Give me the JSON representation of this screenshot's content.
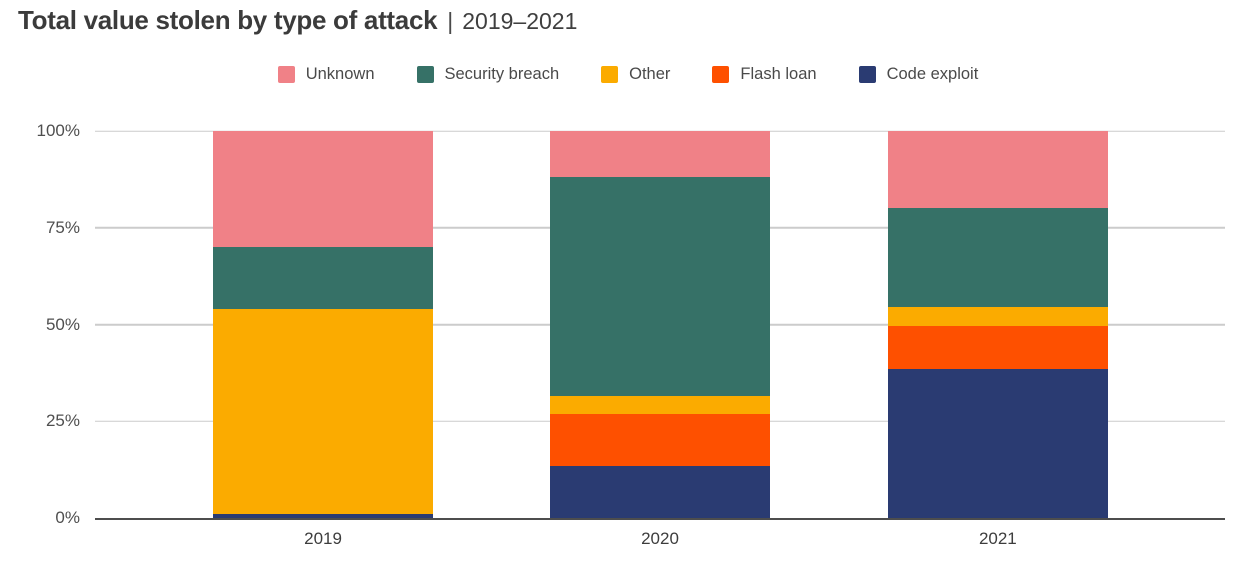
{
  "header": {
    "title": "Total value stolen by type of attack",
    "separator": "|",
    "period": "2019–2021"
  },
  "colors": {
    "unknown": "#F08187",
    "security_breach": "#367167",
    "other": "#FBAB00",
    "flash_loan": "#FE5000",
    "code_exploit": "#2A3B72",
    "gridline": "#CCCCCC",
    "axis_line": "#4D4D4D",
    "title_text": "#3B3B3B",
    "tick_text": "#4F4F4F"
  },
  "chart_data": {
    "type": "bar",
    "stacked": true,
    "unit": "%",
    "title": "Total value stolen by type of attack",
    "subtitle": "2019–2021",
    "categories": [
      "2019",
      "2020",
      "2021"
    ],
    "series": [
      {
        "name": "Code exploit",
        "color": "#2A3B72",
        "values": [
          1,
          13.5,
          38.5
        ]
      },
      {
        "name": "Flash loan",
        "color": "#FE5000",
        "values": [
          0,
          13.5,
          11
        ]
      },
      {
        "name": "Other",
        "color": "#FBAB00",
        "values": [
          53,
          4.5,
          5
        ]
      },
      {
        "name": "Security breach",
        "color": "#367167",
        "values": [
          16,
          56.5,
          25.5
        ]
      },
      {
        "name": "Unknown",
        "color": "#F08187",
        "values": [
          30,
          12,
          20
        ]
      }
    ],
    "legend_order": [
      "Unknown",
      "Security breach",
      "Other",
      "Flash loan",
      "Code exploit"
    ],
    "legend_position": "top",
    "xlabel": "",
    "ylabel": "",
    "ylim": [
      0,
      100
    ],
    "yticks": [
      0,
      25,
      50,
      75,
      100
    ],
    "ytick_labels": [
      "0%",
      "25%",
      "50%",
      "75%",
      "100%"
    ],
    "grid": true
  }
}
